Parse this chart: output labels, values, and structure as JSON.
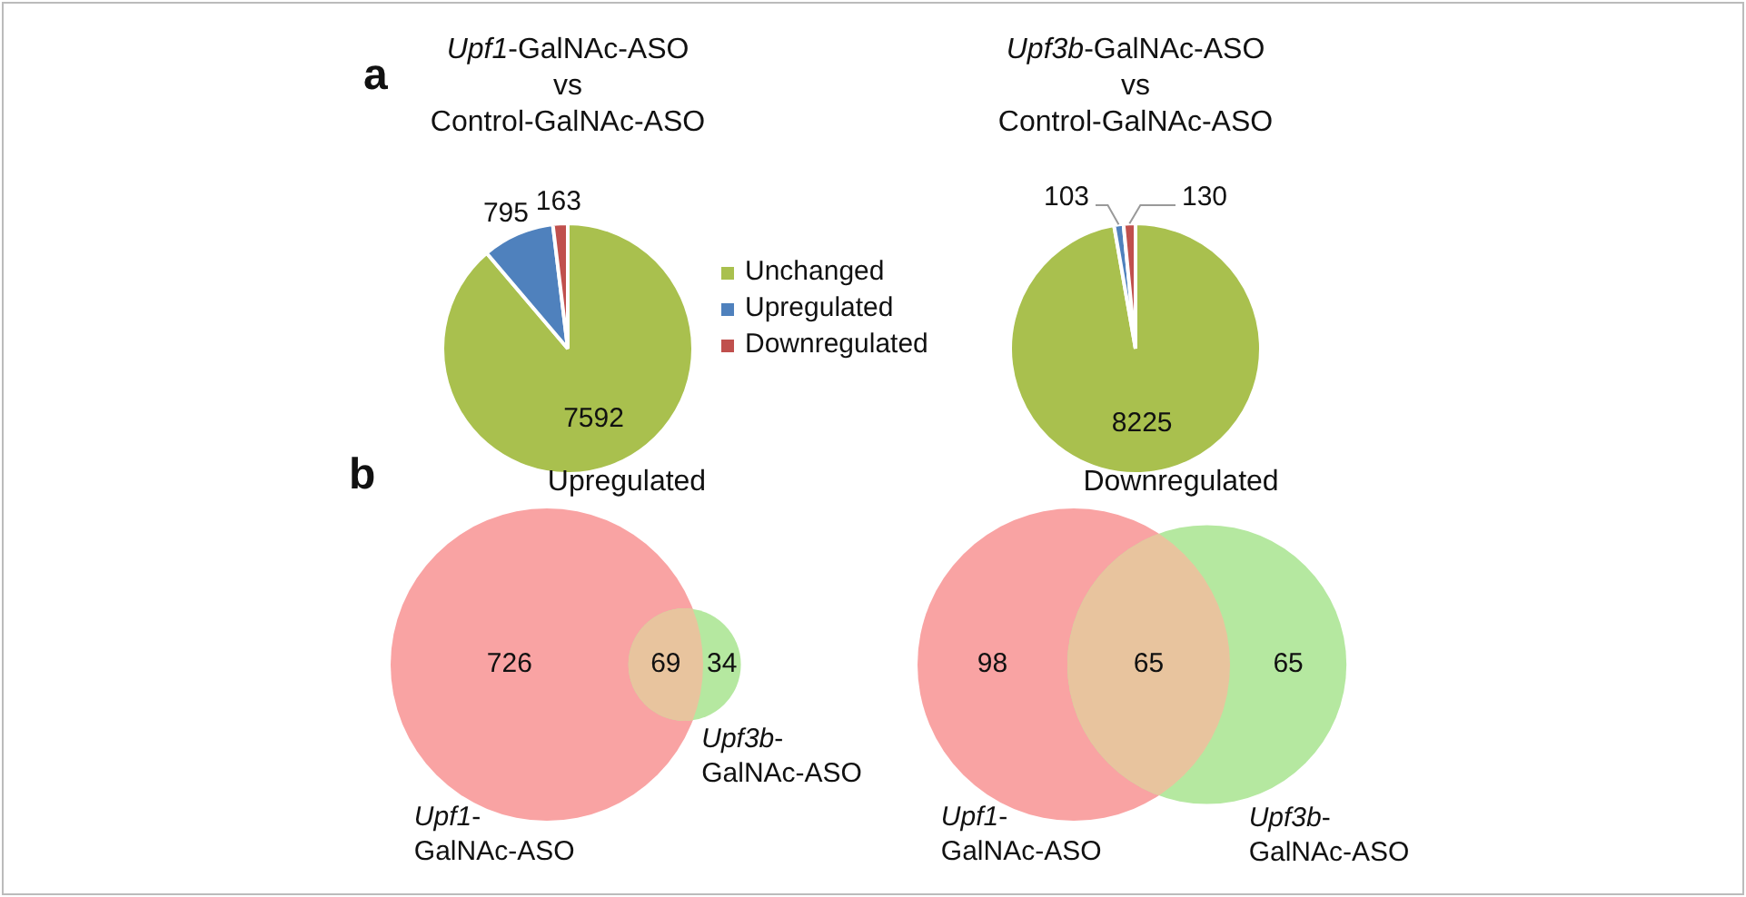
{
  "chart_data": [
    {
      "type": "pie",
      "title": "Upf1-GalNAc-ASO\nvs\nControl-GalNAc-ASO",
      "categories": [
        "Unchanged",
        "Upregulated",
        "Downregulated"
      ],
      "values": [
        7592,
        795,
        163
      ],
      "colors": [
        "#a9c04e",
        "#4f81bd",
        "#c0504d"
      ],
      "data_labels": true,
      "legend": "right",
      "annotations": [
        "a"
      ]
    },
    {
      "type": "pie",
      "title": "Upf3b-GalNAc-ASO\nvs\nControl-GalNAc-ASO",
      "categories": [
        null,
        null,
        null
      ],
      "values": [
        8225,
        103,
        130
      ],
      "colors": [
        "#a9c04e",
        "#4f81bd",
        "#c0504d"
      ],
      "data_labels": true
    },
    {
      "type": "other",
      "title": "Upregulated",
      "categories": [
        "Upf1-GalNAc-ASO",
        null,
        "Upf3b-GalNAc-ASO"
      ],
      "values": [
        726,
        69,
        34
      ],
      "colors": [
        "#f9a3a3",
        "#e8c49e",
        "#b5e8a0"
      ],
      "data_labels": true,
      "annotations": [
        "b"
      ]
    },
    {
      "type": "other",
      "title": "Downregulated",
      "categories": [
        "Upf1-GalNAc-ASO",
        null,
        "Upf3b-GalNAc-ASO"
      ],
      "values": [
        98,
        65,
        65
      ],
      "colors": [
        "#f9a3a3",
        "#e8c49e",
        "#b5e8a0"
      ],
      "data_labels": true
    }
  ]
}
